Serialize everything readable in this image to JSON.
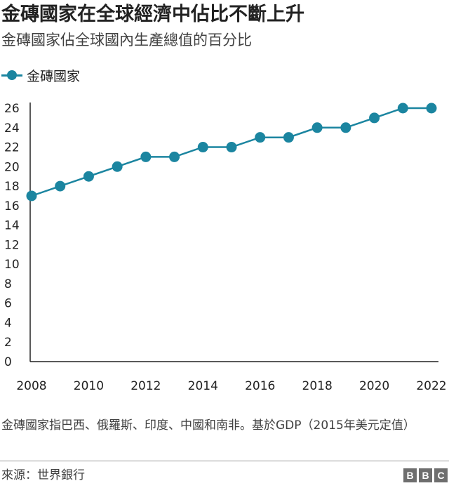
{
  "header": {
    "title": "金磚國家在全球經濟中佔比不斷上升",
    "subtitle": "金磚國家佔全球國內生產總值的百分比"
  },
  "legend": {
    "label": "金磚國家"
  },
  "colors": {
    "series": "#1b85a0",
    "axis": "#222222",
    "text": "#222222"
  },
  "chart_data": {
    "type": "line",
    "x": [
      2008,
      2009,
      2010,
      2011,
      2012,
      2013,
      2014,
      2015,
      2016,
      2017,
      2018,
      2019,
      2020,
      2021,
      2022
    ],
    "series": [
      {
        "name": "金磚國家",
        "values": [
          17,
          18,
          19,
          20,
          21,
          21,
          22,
          22,
          23,
          23,
          24,
          24,
          25,
          26,
          26
        ]
      }
    ],
    "x_ticks": [
      2008,
      2010,
      2012,
      2014,
      2016,
      2018,
      2020,
      2022
    ],
    "y_ticks": [
      0,
      2,
      4,
      6,
      8,
      10,
      12,
      14,
      16,
      18,
      20,
      22,
      24,
      26
    ],
    "xlim": [
      2008,
      2022
    ],
    "ylim": [
      0,
      26
    ],
    "grid": false,
    "legend_position": "top-left"
  },
  "footer": {
    "note": "金磚國家指巴西、俄羅斯、印度、中國和南非。基於GDP（2015年美元定值）",
    "source": "來源：世界銀行",
    "logo": [
      "B",
      "B",
      "C"
    ]
  }
}
